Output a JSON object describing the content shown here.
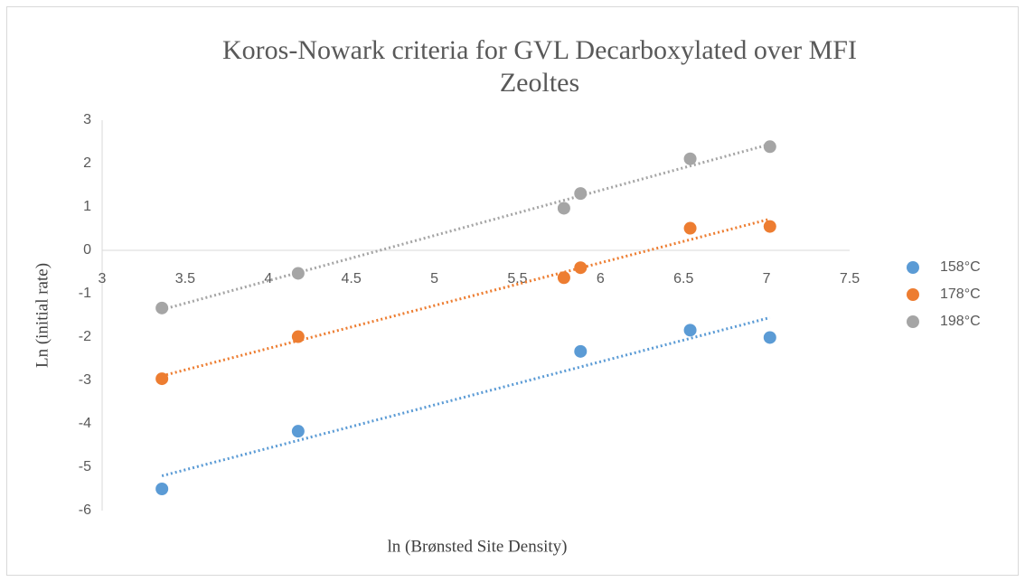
{
  "chart_data": {
    "type": "scatter",
    "title": "Koros-Nowark criteria for GVL Decarboxylated over MFI Zeoltes",
    "xlabel": "ln (Brønsted Site Density)",
    "ylabel": "Ln (initial rate)",
    "xlim": [
      3,
      7.5
    ],
    "xticks": [
      3,
      3.5,
      4,
      4.5,
      5,
      5.5,
      6,
      6.5,
      7,
      7.5
    ],
    "ylim": [
      -6,
      3
    ],
    "yticks": [
      -6,
      -5,
      -4,
      -3,
      -2,
      -1,
      0,
      1,
      2,
      3
    ],
    "trendline": "linear",
    "legend": "right",
    "series": [
      {
        "name": "158°C",
        "color": "#5b9bd5",
        "x": [
          3.36,
          4.18,
          5.88,
          6.54,
          7.02
        ],
        "values": [
          -5.5,
          -4.17,
          -2.33,
          -1.84,
          -2.01
        ]
      },
      {
        "name": "178°C",
        "color": "#ed7d31",
        "x": [
          3.36,
          4.18,
          5.78,
          5.88,
          6.54,
          7.02
        ],
        "values": [
          -2.96,
          -1.99,
          -0.63,
          -0.4,
          0.51,
          0.55
        ]
      },
      {
        "name": "198°C",
        "color": "#a5a5a5",
        "x": [
          3.36,
          4.18,
          5.78,
          5.88,
          6.54,
          7.02
        ],
        "values": [
          -1.33,
          -0.53,
          0.97,
          1.31,
          2.11,
          2.39
        ]
      }
    ]
  }
}
